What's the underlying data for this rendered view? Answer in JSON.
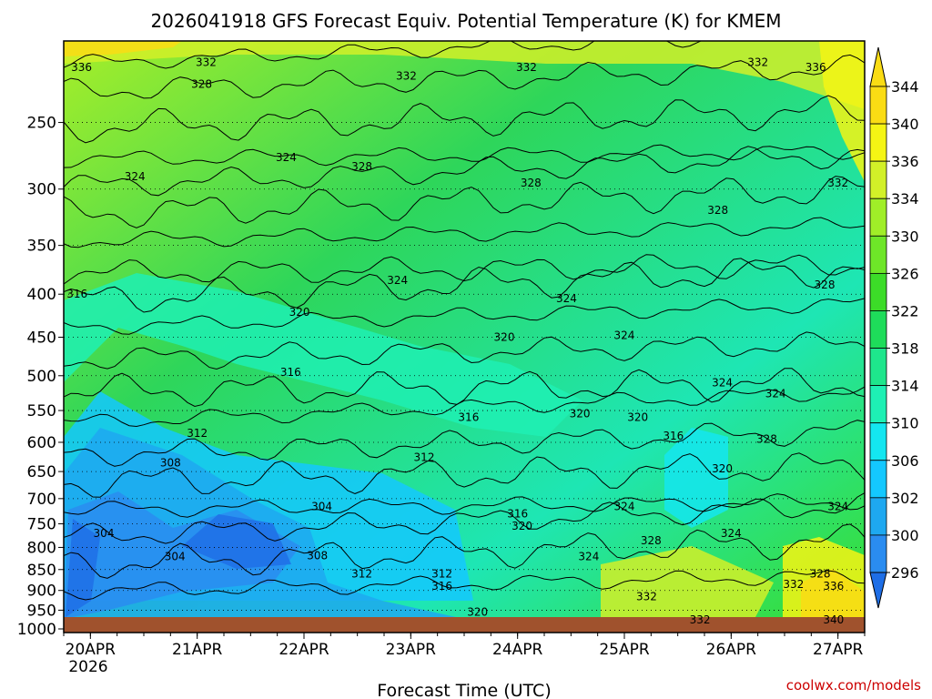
{
  "chart_data": {
    "type": "heatmap",
    "title": "2026041918 GFS Forecast Equiv. Potential Temperature (K) for KMEM",
    "xlabel": "Forecast Time (UTC)",
    "ylabel": "",
    "credit": "coolwx.com/models",
    "x_ticks": [
      "20APR",
      "21APR",
      "22APR",
      "23APR",
      "24APR",
      "25APR",
      "26APR",
      "27APR"
    ],
    "x_year": "2026",
    "y_ticks": [
      1000,
      950,
      900,
      850,
      800,
      750,
      700,
      650,
      600,
      550,
      500,
      450,
      400,
      350,
      300,
      250
    ],
    "y_range": [
      1010,
      200
    ],
    "y_scale": "log",
    "x_range": [
      "2026-04-19T18:00Z",
      "2026-04-27T06:00Z"
    ],
    "colorbar": {
      "labels": [
        296,
        300,
        302,
        306,
        310,
        314,
        318,
        322,
        326,
        330,
        334,
        336,
        340,
        344
      ],
      "colors": [
        "#1e6ee6",
        "#2a8cf0",
        "#1ea8f0",
        "#14c8ff",
        "#14e6f0",
        "#1ef0b4",
        "#1ee68c",
        "#1edc5a",
        "#3cdc28",
        "#6ee628",
        "#a0ee28",
        "#d2f028",
        "#f5f514",
        "#fadc14"
      ],
      "placement": "right",
      "extend": "both"
    },
    "contour_labels": [
      {
        "value": "336",
        "time": "2026-04-19T22:00Z",
        "p": 215
      },
      {
        "value": "332",
        "time": "2026-04-21T02:00Z",
        "p": 212
      },
      {
        "value": "328",
        "time": "2026-04-21T01:00Z",
        "p": 225
      },
      {
        "value": "332",
        "time": "2026-04-22T23:00Z",
        "p": 220
      },
      {
        "value": "332",
        "time": "2026-04-24T02:00Z",
        "p": 215
      },
      {
        "value": "332",
        "time": "2026-04-26T06:00Z",
        "p": 212
      },
      {
        "value": "336",
        "time": "2026-04-26T19:00Z",
        "p": 215
      },
      {
        "value": "324",
        "time": "2026-04-20T10:00Z",
        "p": 290
      },
      {
        "value": "324",
        "time": "2026-04-21T20:00Z",
        "p": 275
      },
      {
        "value": "328",
        "time": "2026-04-22T13:00Z",
        "p": 282
      },
      {
        "value": "328",
        "time": "2026-04-24T03:00Z",
        "p": 295
      },
      {
        "value": "328",
        "time": "2026-04-25T21:00Z",
        "p": 318
      },
      {
        "value": "332",
        "time": "2026-04-27T00:00Z",
        "p": 295
      },
      {
        "value": "324",
        "time": "2026-04-22T21:00Z",
        "p": 385
      },
      {
        "value": "324",
        "time": "2026-04-24T11:00Z",
        "p": 405
      },
      {
        "value": "320",
        "time": "2026-04-21T23:00Z",
        "p": 420
      },
      {
        "value": "316",
        "time": "2026-04-19T21:00Z",
        "p": 400
      },
      {
        "value": "320",
        "time": "2026-04-23T21:00Z",
        "p": 450
      },
      {
        "value": "324",
        "time": "2026-04-25T00:00Z",
        "p": 448
      },
      {
        "value": "328",
        "time": "2026-04-26T21:00Z",
        "p": 390
      },
      {
        "value": "316",
        "time": "2026-04-21T21:00Z",
        "p": 495
      },
      {
        "value": "312",
        "time": "2026-04-21T00:00Z",
        "p": 585
      },
      {
        "value": "316",
        "time": "2026-04-23T13:00Z",
        "p": 560
      },
      {
        "value": "320",
        "time": "2026-04-24T14:00Z",
        "p": 555
      },
      {
        "value": "320",
        "time": "2026-04-25T03:00Z",
        "p": 560
      },
      {
        "value": "324",
        "time": "2026-04-25T22:00Z",
        "p": 510
      },
      {
        "value": "324",
        "time": "2026-04-26T10:00Z",
        "p": 525
      },
      {
        "value": "316",
        "time": "2026-04-25T11:00Z",
        "p": 590
      },
      {
        "value": "328",
        "time": "2026-04-26T08:00Z",
        "p": 595
      },
      {
        "value": "308",
        "time": "2026-04-20T18:00Z",
        "p": 635
      },
      {
        "value": "312",
        "time": "2026-04-23T03:00Z",
        "p": 625
      },
      {
        "value": "320",
        "time": "2026-04-25T22:00Z",
        "p": 645
      },
      {
        "value": "304",
        "time": "2026-04-22T04:00Z",
        "p": 715
      },
      {
        "value": "324",
        "time": "2026-04-25T00:00Z",
        "p": 715
      },
      {
        "value": "316",
        "time": "2026-04-24T00:00Z",
        "p": 730
      },
      {
        "value": "324",
        "time": "2026-04-27T00:00Z",
        "p": 715
      },
      {
        "value": "304",
        "time": "2026-04-20T03:00Z",
        "p": 770
      },
      {
        "value": "320",
        "time": "2026-04-24T01:00Z",
        "p": 755
      },
      {
        "value": "328",
        "time": "2026-04-25T06:00Z",
        "p": 785
      },
      {
        "value": "324",
        "time": "2026-04-26T00:00Z",
        "p": 770
      },
      {
        "value": "304",
        "time": "2026-04-20T19:00Z",
        "p": 820
      },
      {
        "value": "308",
        "time": "2026-04-22T03:00Z",
        "p": 818
      },
      {
        "value": "324",
        "time": "2026-04-24T16:00Z",
        "p": 820
      },
      {
        "value": "312",
        "time": "2026-04-22T13:00Z",
        "p": 860
      },
      {
        "value": "312",
        "time": "2026-04-23T07:00Z",
        "p": 860
      },
      {
        "value": "316",
        "time": "2026-04-23T07:00Z",
        "p": 890
      },
      {
        "value": "328",
        "time": "2026-04-26T20:00Z",
        "p": 860
      },
      {
        "value": "332",
        "time": "2026-04-26T14:00Z",
        "p": 885
      },
      {
        "value": "336",
        "time": "2026-04-26T23:00Z",
        "p": 890
      },
      {
        "value": "332",
        "time": "2026-04-25T05:00Z",
        "p": 915
      },
      {
        "value": "320",
        "time": "2026-04-23T15:00Z",
        "p": 955
      },
      {
        "value": "332",
        "time": "2026-04-25T17:00Z",
        "p": 975
      },
      {
        "value": "340",
        "time": "2026-04-26T23:00Z",
        "p": 975
      }
    ]
  }
}
